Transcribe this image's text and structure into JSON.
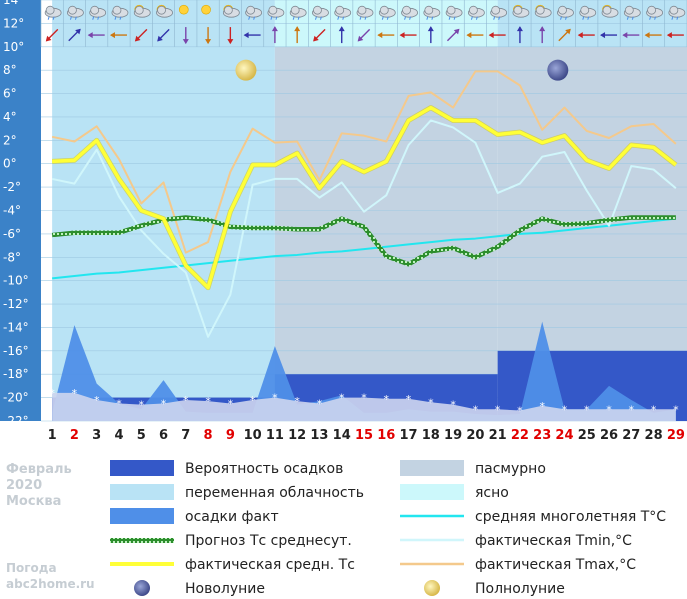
{
  "chart_data": {
    "type": "line",
    "title": "Февраль 2020 Москва",
    "month": "Февраль",
    "year": "2020",
    "city": "Москва",
    "site": "Погода abc2home.ru",
    "site_title": "Погода",
    "site_url": "abc2home.ru",
    "ylim": [
      -22,
      14
    ],
    "yticks": [
      14,
      12,
      10,
      8,
      6,
      4,
      2,
      0,
      -2,
      -4,
      -6,
      -8,
      -10,
      -12,
      -14,
      -16,
      -18,
      -20,
      -22
    ],
    "ytick_labels": [
      "14°",
      "12°",
      "10°",
      "8°",
      "6°",
      "4°",
      "2°",
      "0°",
      "-2°",
      "-4°",
      "-6°",
      "-8°",
      "-10°",
      "-12°",
      "-14°",
      "-16°",
      "-18°",
      "-20°",
      "-22°"
    ],
    "days": [
      1,
      2,
      3,
      4,
      5,
      6,
      7,
      8,
      9,
      10,
      11,
      12,
      13,
      14,
      15,
      16,
      17,
      18,
      19,
      20,
      21,
      22,
      23,
      24,
      25,
      26,
      27,
      28,
      29
    ],
    "day_labels": [
      "1",
      "2",
      "3",
      "4",
      "5",
      "6",
      "7",
      "8",
      "9",
      "10",
      "11",
      "12",
      "13",
      "14",
      "15",
      "16",
      "17",
      "18",
      "19",
      "20",
      "21",
      "22",
      "23",
      "24",
      "25",
      "26",
      "27",
      "28",
      "29"
    ],
    "weekend_days": [
      2,
      8,
      9,
      15,
      16,
      22,
      23,
      24,
      29
    ],
    "cloud_cover": {
      "segments": [
        {
          "from": 0.5,
          "to": 10.5,
          "type": "partly"
        },
        {
          "from": 10.5,
          "to": 20.5,
          "type": "overcast"
        },
        {
          "from": 20.5,
          "to": 29.5,
          "type": "overcast"
        }
      ],
      "upper_band": [
        {
          "from": 0.5,
          "to": 10.5,
          "type": "partly"
        },
        {
          "from": 10.5,
          "to": 20.5,
          "type": "clear"
        },
        {
          "from": 20.5,
          "to": 29.5,
          "type": "partly"
        }
      ]
    },
    "precip_probability_band": [
      {
        "from": 0.5,
        "to": 10.5,
        "top": -20
      },
      {
        "from": 10.5,
        "to": 20.5,
        "top": -18
      },
      {
        "from": 20.5,
        "to": 29.5,
        "top": -16
      }
    ],
    "series": [
      {
        "name": "фактическая Tmax,°C",
        "key": "tmax",
        "values": [
          2.3,
          1.9,
          3.2,
          0.4,
          -3.4,
          -1.6,
          -7.6,
          -6.7,
          -0.7,
          3.0,
          1.8,
          1.9,
          -1.4,
          2.6,
          2.4,
          1.9,
          5.8,
          6.1,
          4.8,
          7.9,
          7.9,
          6.7,
          2.9,
          4.8,
          2.8,
          2.2,
          3.2,
          3.4,
          1.7
        ]
      },
      {
        "name": "фактическая средн. Тс",
        "key": "tmean",
        "values": [
          0.2,
          0.3,
          2.0,
          -1.3,
          -4.0,
          -4.7,
          -8.7,
          -10.6,
          -4.1,
          -0.1,
          -0.1,
          0.9,
          -2.1,
          0.2,
          -0.7,
          0.2,
          3.7,
          4.8,
          3.7,
          3.7,
          2.5,
          2.7,
          1.8,
          2.4,
          0.3,
          -0.4,
          1.6,
          1.4,
          -0.1
        ]
      },
      {
        "name": "фактическая Tmin,°C",
        "key": "tmin",
        "values": [
          -1.3,
          -1.7,
          1.2,
          -2.8,
          -5.7,
          -7.7,
          -9.3,
          -14.8,
          -11.2,
          -1.8,
          -1.3,
          -1.3,
          -2.9,
          -1.6,
          -4.1,
          -2.7,
          1.6,
          3.7,
          3.1,
          1.8,
          -2.5,
          -1.7,
          0.6,
          1.0,
          -2.3,
          -5.3,
          -0.2,
          -0.5,
          -2.1
        ]
      },
      {
        "name": "Прогноз Тс среднесут.",
        "key": "forecast",
        "values": [
          -6.1,
          -5.9,
          -5.9,
          -5.9,
          -5.3,
          -4.8,
          -4.6,
          -4.8,
          -5.4,
          -5.5,
          -5.5,
          -5.6,
          -5.6,
          -4.7,
          -5.4,
          -7.9,
          -8.6,
          -7.5,
          -7.2,
          -8.0,
          -7.1,
          -5.7,
          -4.7,
          -5.2,
          -5.1,
          -4.8,
          -4.6,
          -4.6,
          -4.6
        ]
      },
      {
        "name": "средняя многолетняя Т°С",
        "key": "normal",
        "values": [
          -9.8,
          -9.6,
          -9.4,
          -9.3,
          -9.1,
          -8.9,
          -8.7,
          -8.5,
          -8.3,
          -8.1,
          -7.9,
          -7.8,
          -7.6,
          -7.5,
          -7.3,
          -7.1,
          -6.9,
          -6.7,
          -6.5,
          -6.4,
          -6.2,
          -6.0,
          -5.9,
          -5.7,
          -5.5,
          -5.3,
          -5.1,
          -4.9,
          -4.7
        ]
      }
    ],
    "precipitation_fact_curve": [
      -21.3,
      -13.8,
      -18.8,
      -20.5,
      -21.0,
      -18.5,
      -21.2,
      -21.3,
      -21.3,
      -21.3,
      -15.6,
      -20.6,
      -20.3,
      -19.8,
      -21.3,
      -21.3,
      -21.0,
      -21.2,
      -21.2,
      -21.4,
      -21.5,
      -21.4,
      -13.5,
      -21.0,
      -21.0,
      -19.0,
      -20.2,
      -21.3,
      -21.0
    ],
    "snow_depth_curve": [
      -19.6,
      -19.6,
      -20.2,
      -20.5,
      -20.6,
      -20.5,
      -20.2,
      -20.3,
      -20.5,
      -20.2,
      -20.0,
      -20.3,
      -20.5,
      -20.0,
      -20.0,
      -20.1,
      -20.1,
      -20.4,
      -20.6,
      -21.0,
      -21.0,
      -21.1,
      -20.7,
      -21.0,
      -21.0,
      -21.0,
      -21.0,
      -21.0,
      -21.0
    ],
    "moon_phases": [
      {
        "phase": "Полнолуние",
        "day": 9,
        "temp": 8.0
      },
      {
        "phase": "Новолуние",
        "day": 23,
        "temp": 8.0
      }
    ],
    "weather_icons": [
      "rain-cloud",
      "rain-cloud",
      "rain-cloud",
      "rain-cloud",
      "sun-cloud",
      "sun-cloud",
      "sun",
      "sun",
      "sun-cloud",
      "rain-cloud",
      "rain-cloud",
      "rain-cloud",
      "rain-cloud",
      "rain-cloud",
      "rain-cloud",
      "rain-cloud",
      "rain-cloud",
      "rain-cloud",
      "rain-cloud",
      "rain-cloud",
      "rain-cloud",
      "sun-cloud",
      "sun-cloud",
      "rain-cloud",
      "rain-cloud",
      "sun-cloud",
      "rain-cloud",
      "rain-cloud",
      "rain-cloud"
    ],
    "wind_directions": [
      225,
      45,
      270,
      270,
      225,
      225,
      180,
      180,
      180,
      270,
      0,
      0,
      225,
      0,
      225,
      270,
      270,
      0,
      45,
      270,
      270,
      0,
      0,
      45,
      270,
      270,
      270,
      270,
      270
    ],
    "legend": [
      {
        "label": "Вероятность осадков",
        "key": "precip_prob"
      },
      {
        "label": "пасмурно",
        "key": "overcast"
      },
      {
        "label": "переменная облачность",
        "key": "partly"
      },
      {
        "label": "ясно",
        "key": "clear"
      },
      {
        "label": "осадки факт",
        "key": "precip_fact"
      },
      {
        "label": "средняя многолетняя T°C",
        "key": "normal"
      },
      {
        "label": "Прогноз Тс среднесут.",
        "key": "forecast"
      },
      {
        "label": "фактическая Tmin,°C",
        "key": "tmin"
      },
      {
        "label": "фактическая средн. Тс",
        "key": "tmean"
      },
      {
        "label": "фактическая Tmax,°C",
        "key": "tmax"
      },
      {
        "label": "Новолуние",
        "key": "new_moon"
      },
      {
        "label": "Полнолуние",
        "key": "full_moon"
      }
    ],
    "colors": {
      "partly": "#b9e3f5",
      "overcast": "#c3d3e2",
      "clear": "#ccf8fb",
      "precip_prob": "#3458c8",
      "precip_fact": "#4f8fe8",
      "snow": "#cdd5ee",
      "normal": "#22e6ef",
      "forecast": "#2d8e2d",
      "tmin": "#d0f6fb",
      "tmean": "#ffff37",
      "tmax": "#f4c98c",
      "weekday": "#222222",
      "weekend": "#e10000",
      "axis_bg": "#3b82c8"
    }
  }
}
